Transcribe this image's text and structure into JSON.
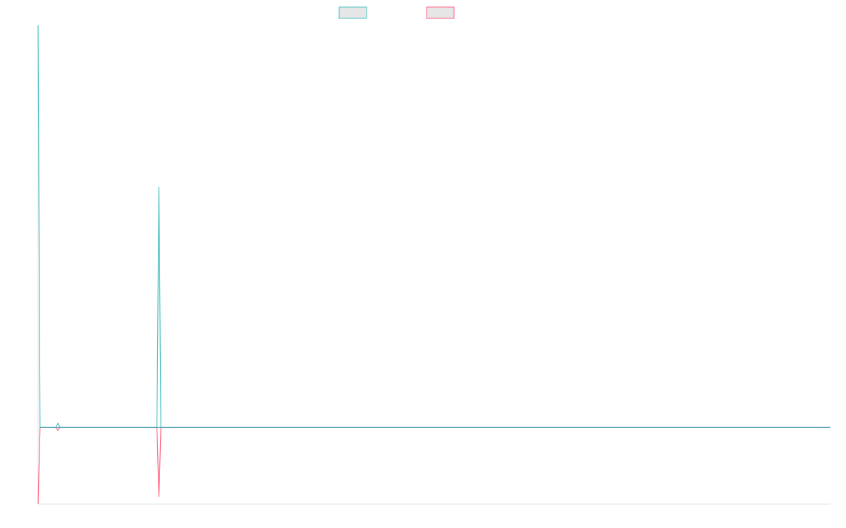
{
  "chart_data": {
    "type": "line",
    "title": "",
    "xlabel": "",
    "ylabel": "",
    "grid": false,
    "legend_position": "top-center",
    "xlim": [
      0,
      200
    ],
    "ylim": [
      -6.4,
      33.6
    ],
    "colors": {
      "series_a": "#4bc0c0",
      "series_b": "#ff6384",
      "zero_line": "#2a8fa8",
      "axis": "#e0e0e0",
      "legend_fill": "#e6e6e6"
    },
    "series": [
      {
        "points": [
          [
            0,
            33.6
          ],
          [
            0.5,
            0
          ],
          [
            1,
            0
          ],
          [
            4.5,
            0
          ],
          [
            5,
            0.35
          ],
          [
            5.5,
            0
          ],
          [
            30,
            0
          ],
          [
            30.5,
            20.1
          ],
          [
            31,
            0
          ],
          [
            200,
            0
          ]
        ]
      },
      {
        "points": [
          [
            0,
            -6.4
          ],
          [
            0.5,
            0
          ],
          [
            1,
            0
          ],
          [
            4.5,
            0
          ],
          [
            5,
            -0.25
          ],
          [
            5.5,
            0
          ],
          [
            30,
            0
          ],
          [
            30.5,
            -5.8
          ],
          [
            31,
            0
          ],
          [
            200,
            0
          ]
        ]
      }
    ]
  }
}
